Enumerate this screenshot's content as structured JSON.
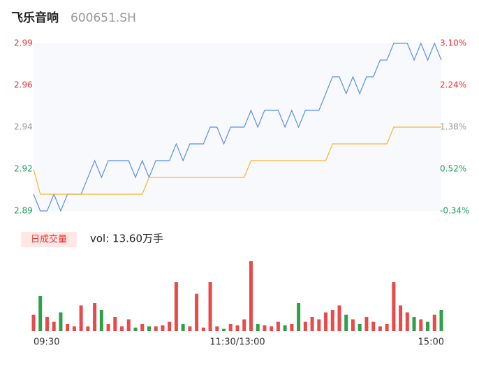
{
  "header": {
    "title": "飞乐音响",
    "code": "600651.SH"
  },
  "chart_data": [
    {
      "type": "line",
      "x": [
        0,
        4,
        8,
        12,
        16,
        20,
        24,
        28,
        32,
        36,
        40,
        44,
        48,
        52,
        56,
        60,
        64,
        68,
        72,
        76,
        80,
        84,
        88,
        92,
        96,
        100,
        104,
        108,
        112,
        116,
        120,
        124,
        128,
        132,
        136,
        140,
        144,
        148,
        152,
        156,
        160,
        164,
        168,
        172,
        176,
        180,
        184,
        188,
        192,
        196,
        200,
        204,
        208,
        212,
        216,
        220,
        224,
        228,
        232,
        236,
        240
      ],
      "xlim": [
        0,
        240
      ],
      "xticks": [
        {
          "value": 0,
          "label": "09:30"
        },
        {
          "value": 120,
          "label": "11:30/13:00"
        },
        {
          "value": 240,
          "label": "15:00"
        }
      ],
      "ylim": [
        2.89,
        2.99
      ],
      "yticks": [
        {
          "value": 2.99,
          "label": "2.99"
        },
        {
          "value": 2.965,
          "label": "2.96"
        },
        {
          "value": 2.94,
          "label": "2.94"
        },
        {
          "value": 2.915,
          "label": "2.92"
        },
        {
          "value": 2.89,
          "label": "2.89"
        }
      ],
      "ytick_colors": [
        "#e8312f",
        "#e8312f",
        "#999999",
        "#1aa05a",
        "#1aa05a"
      ],
      "y2lim": [
        -0.34,
        3.1
      ],
      "y2ticks": [
        {
          "value": 3.1,
          "label": "3.10%"
        },
        {
          "value": 2.24,
          "label": "2.24%"
        },
        {
          "value": 1.38,
          "label": "1.38%"
        },
        {
          "value": 0.52,
          "label": "0.52%"
        },
        {
          "value": -0.34,
          "label": "-0.34%"
        }
      ],
      "series": [
        {
          "color": "#5b8fe8",
          "values": [
            2.9,
            2.89,
            2.89,
            2.9,
            2.89,
            2.9,
            2.9,
            2.9,
            2.91,
            2.92,
            2.91,
            2.92,
            2.92,
            2.92,
            2.92,
            2.91,
            2.92,
            2.91,
            2.92,
            2.92,
            2.92,
            2.93,
            2.92,
            2.93,
            2.93,
            2.93,
            2.94,
            2.94,
            2.93,
            2.94,
            2.94,
            2.94,
            2.95,
            2.94,
            2.95,
            2.95,
            2.95,
            2.94,
            2.95,
            2.94,
            2.95,
            2.95,
            2.95,
            2.96,
            2.97,
            2.97,
            2.96,
            2.97,
            2.96,
            2.97,
            2.97,
            2.98,
            2.98,
            2.99,
            2.99,
            2.99,
            2.98,
            2.99,
            2.98,
            2.99,
            2.98
          ]
        },
        {
          "color": "#f5b731",
          "values": [
            2.915,
            2.9,
            2.9,
            2.9,
            2.9,
            2.9,
            2.9,
            2.9,
            2.9,
            2.9,
            2.9,
            2.9,
            2.9,
            2.9,
            2.9,
            2.9,
            2.9,
            2.91,
            2.91,
            2.91,
            2.91,
            2.91,
            2.91,
            2.91,
            2.91,
            2.91,
            2.91,
            2.91,
            2.91,
            2.91,
            2.91,
            2.91,
            2.92,
            2.92,
            2.92,
            2.92,
            2.92,
            2.92,
            2.92,
            2.92,
            2.92,
            2.92,
            2.92,
            2.92,
            2.93,
            2.93,
            2.93,
            2.93,
            2.93,
            2.93,
            2.93,
            2.93,
            2.93,
            2.94,
            2.94,
            2.94,
            2.94,
            2.94,
            2.94,
            2.94,
            2.94
          ]
        }
      ]
    },
    {
      "type": "bar",
      "legend_label": "日成交量",
      "summary": "vol: 13.60万手",
      "x": [
        0,
        4,
        8,
        12,
        16,
        20,
        24,
        28,
        32,
        36,
        40,
        44,
        48,
        52,
        56,
        60,
        64,
        68,
        72,
        76,
        80,
        84,
        88,
        92,
        96,
        100,
        104,
        108,
        112,
        116,
        120,
        124,
        128,
        132,
        136,
        140,
        144,
        148,
        152,
        156,
        160,
        164,
        168,
        172,
        176,
        180,
        184,
        188,
        192,
        196,
        200,
        204,
        208,
        212,
        216,
        220,
        224,
        228,
        232,
        236,
        240
      ],
      "xlim": [
        0,
        240
      ],
      "ylim": [
        0,
        3000
      ],
      "up_color": "#e84a4a",
      "down_color": "#2ea04a",
      "values": [
        700,
        1500,
        600,
        400,
        800,
        300,
        200,
        1100,
        200,
        1200,
        900,
        300,
        600,
        200,
        500,
        150,
        300,
        200,
        200,
        250,
        400,
        2100,
        300,
        200,
        1600,
        150,
        2100,
        200,
        100,
        300,
        250,
        500,
        3000,
        300,
        250,
        200,
        400,
        250,
        300,
        1200,
        400,
        600,
        500,
        800,
        900,
        1100,
        700,
        500,
        300,
        600,
        400,
        200,
        300,
        2100,
        1100,
        800,
        600,
        500,
        400,
        700,
        900
      ]
    }
  ]
}
